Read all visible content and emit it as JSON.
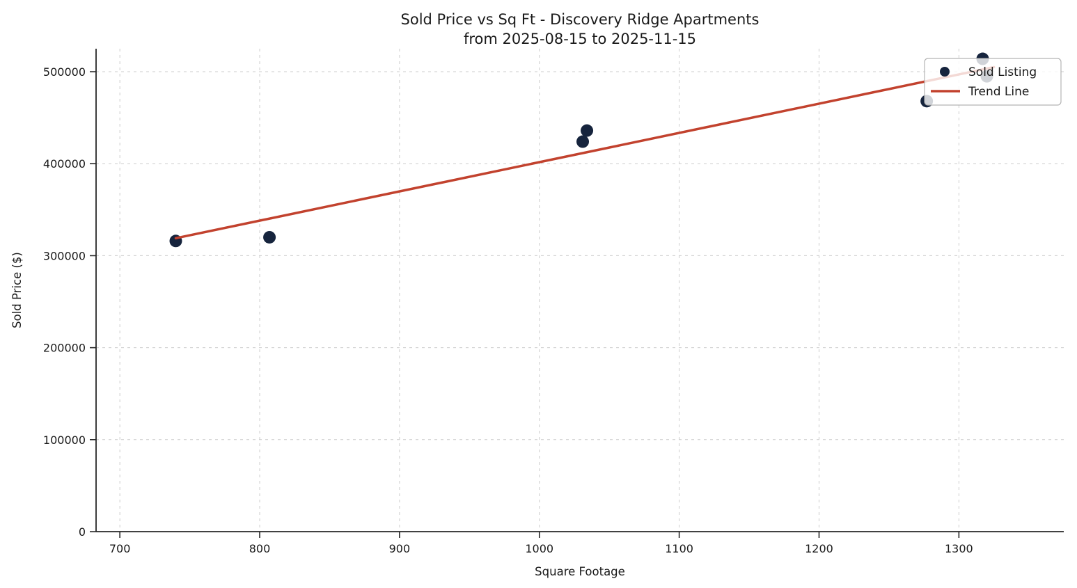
{
  "chart_data": {
    "type": "scatter",
    "title": "Sold Price vs Sq Ft - Discovery Ridge Apartments",
    "subtitle": "from 2025-08-15 to 2025-11-15",
    "xlabel": "Square Footage",
    "ylabel": "Sold Price ($)",
    "xlim": [
      683,
      1375
    ],
    "ylim": [
      0,
      525000
    ],
    "x_ticks": [
      700,
      800,
      900,
      1000,
      1100,
      1200,
      1300
    ],
    "y_ticks": [
      0,
      100000,
      200000,
      300000,
      400000,
      500000
    ],
    "grid": "dashed-both-axes",
    "legend": {
      "position": "upper-right",
      "entries": [
        {
          "label": "Sold Listing",
          "type": "marker"
        },
        {
          "label": "Trend Line",
          "type": "line"
        }
      ]
    },
    "series": [
      {
        "name": "Sold Listing",
        "type": "scatter",
        "color": "#16243d",
        "points": [
          [
            740,
            316000
          ],
          [
            807,
            320000
          ],
          [
            1031,
            424000
          ],
          [
            1034,
            436000
          ],
          [
            1277,
            468000
          ],
          [
            1317,
            514000
          ],
          [
            1320,
            495000
          ]
        ]
      },
      {
        "name": "Trend Line",
        "type": "line",
        "color": "#c2422e",
        "points": [
          [
            740,
            319000
          ],
          [
            1325,
            505000
          ]
        ]
      }
    ],
    "colors": {
      "point": "#16243d",
      "trend": "#c2422e",
      "grid": "#cccccc",
      "axis": "#262626",
      "text": "#1a1a1a",
      "legend_border": "#b3b3b3",
      "legend_bg": "rgba(255,255,255,0.8)"
    }
  }
}
